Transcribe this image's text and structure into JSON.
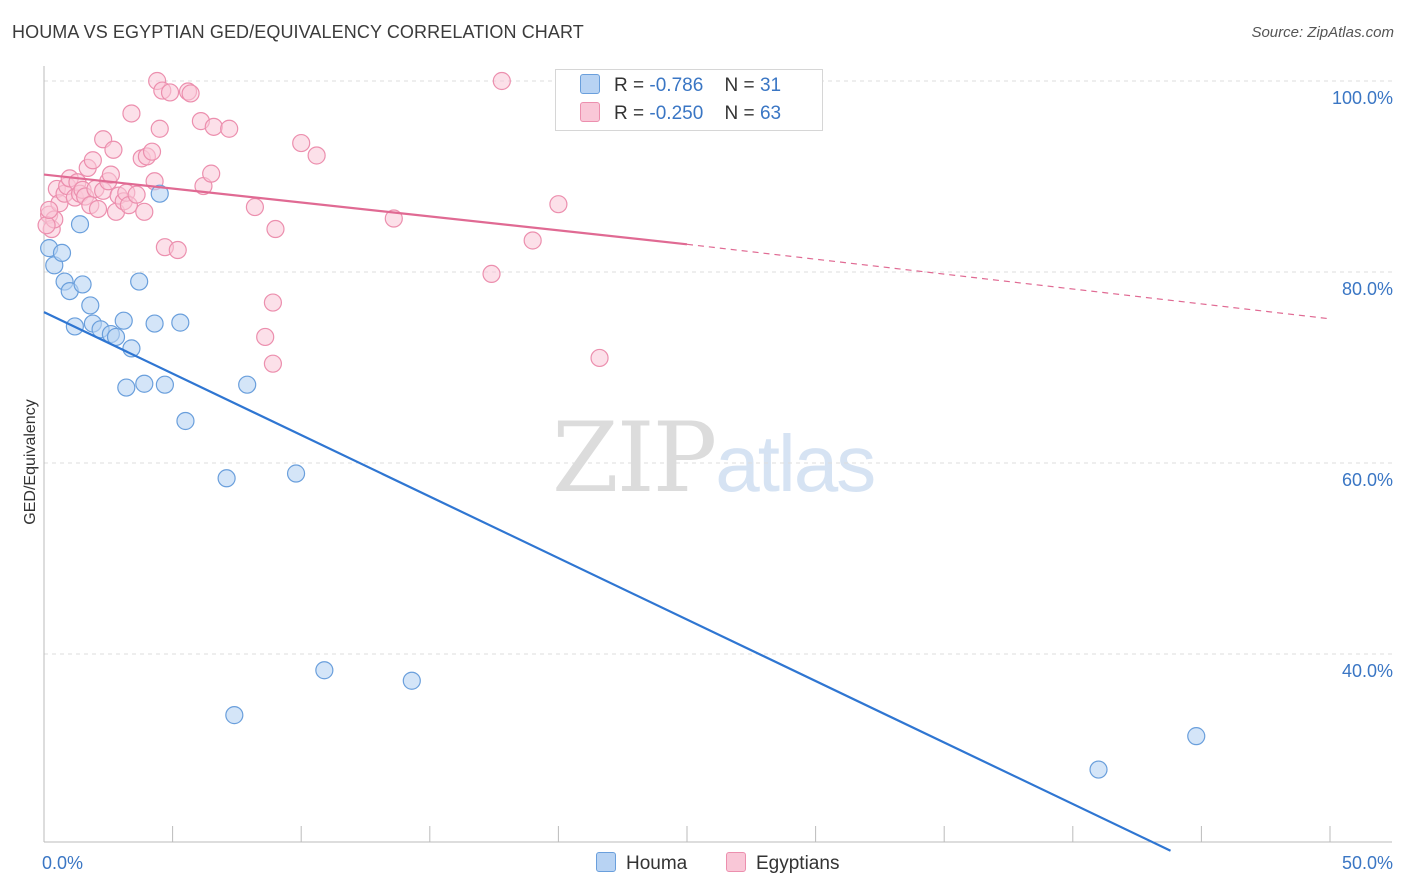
{
  "title": "HOUMA VS EGYPTIAN GED/EQUIVALENCY CORRELATION CHART",
  "source": "Source: ZipAtlas.com",
  "watermark": {
    "zip": "ZIP",
    "atlas": "atlas"
  },
  "legend": {
    "houma": {
      "r_label": "R =",
      "r_value": "-0.786",
      "n_label": "N =",
      "n_value": "31"
    },
    "egyptians": {
      "r_label": "R =",
      "r_value": "-0.250",
      "n_label": "N =",
      "n_value": "63"
    }
  },
  "colors": {
    "houma_fill": "#b8d3f3",
    "houma_stroke": "#6a9fdc",
    "houma_line": "#2f76d2",
    "egypt_fill": "#f9c7d7",
    "egypt_stroke": "#ec8fae",
    "egypt_line": "#e06a93",
    "axis_label": "#3a76c4",
    "grid": "#dddddd"
  },
  "chart_data": {
    "type": "scatter",
    "title": "HOUMA VS EGYPTIAN GED/EQUIVALENCY CORRELATION CHART",
    "xlabel": "",
    "ylabel": "GED/Equivalency",
    "xlim": [
      0,
      50
    ],
    "ylim": [
      20,
      102
    ],
    "x_tick_labels": [
      "0.0%",
      "50.0%"
    ],
    "y_ticks": [
      {
        "value": 100,
        "label": "100.0%"
      },
      {
        "value": 80,
        "label": "80.0%"
      },
      {
        "value": 60,
        "label": "60.0%"
      },
      {
        "value": 40,
        "label": "40.0%"
      }
    ],
    "grid": "horizontal dashed",
    "legend_position": "top-center",
    "series": [
      {
        "name": "Houma",
        "points": [
          [
            0.2,
            82.5
          ],
          [
            0.4,
            80.7
          ],
          [
            0.7,
            82.0
          ],
          [
            0.8,
            79.0
          ],
          [
            1.0,
            78.0
          ],
          [
            1.2,
            74.3
          ],
          [
            1.4,
            85.0
          ],
          [
            1.5,
            78.7
          ],
          [
            1.8,
            76.5
          ],
          [
            1.9,
            74.6
          ],
          [
            2.2,
            74.0
          ],
          [
            2.6,
            73.5
          ],
          [
            2.8,
            73.2
          ],
          [
            3.1,
            74.9
          ],
          [
            3.2,
            67.9
          ],
          [
            3.4,
            72.0
          ],
          [
            3.7,
            79.0
          ],
          [
            3.9,
            68.3
          ],
          [
            4.3,
            74.6
          ],
          [
            4.5,
            88.2
          ],
          [
            4.7,
            68.2
          ],
          [
            5.3,
            74.7
          ],
          [
            5.5,
            64.4
          ],
          [
            7.1,
            58.4
          ],
          [
            7.9,
            68.2
          ],
          [
            7.4,
            33.6
          ],
          [
            9.8,
            58.9
          ],
          [
            10.9,
            38.3
          ],
          [
            14.3,
            37.2
          ],
          [
            41.0,
            27.9
          ],
          [
            44.8,
            31.4
          ]
        ],
        "trend": {
          "x": [
            0,
            43.8
          ],
          "y": [
            75.8,
            19.4
          ]
        }
      },
      {
        "name": "Egyptians",
        "points": [
          [
            0.2,
            86.0
          ],
          [
            0.3,
            84.5
          ],
          [
            0.4,
            85.5
          ],
          [
            0.5,
            88.7
          ],
          [
            0.6,
            87.2
          ],
          [
            0.8,
            88.2
          ],
          [
            0.9,
            89.0
          ],
          [
            1.0,
            89.8
          ],
          [
            1.2,
            87.8
          ],
          [
            1.3,
            89.4
          ],
          [
            1.4,
            88.2
          ],
          [
            1.5,
            88.6
          ],
          [
            1.6,
            87.9
          ],
          [
            1.7,
            90.9
          ],
          [
            1.8,
            87.0
          ],
          [
            1.9,
            91.7
          ],
          [
            2.0,
            88.7
          ],
          [
            2.1,
            86.6
          ],
          [
            2.3,
            88.5
          ],
          [
            2.3,
            93.9
          ],
          [
            2.5,
            89.5
          ],
          [
            2.6,
            90.2
          ],
          [
            2.7,
            92.8
          ],
          [
            2.8,
            86.3
          ],
          [
            2.9,
            88.0
          ],
          [
            3.1,
            87.4
          ],
          [
            3.2,
            88.3
          ],
          [
            3.3,
            87.0
          ],
          [
            3.4,
            96.6
          ],
          [
            3.6,
            88.1
          ],
          [
            3.8,
            91.9
          ],
          [
            3.9,
            86.3
          ],
          [
            4.0,
            92.1
          ],
          [
            4.2,
            92.6
          ],
          [
            4.3,
            89.5
          ],
          [
            4.5,
            95.0
          ],
          [
            4.4,
            100.0
          ],
          [
            4.6,
            99.0
          ],
          [
            4.7,
            82.6
          ],
          [
            4.9,
            98.8
          ],
          [
            5.2,
            82.3
          ],
          [
            5.6,
            98.9
          ],
          [
            5.7,
            98.7
          ],
          [
            6.1,
            95.8
          ],
          [
            6.2,
            89.0
          ],
          [
            6.5,
            90.3
          ],
          [
            6.6,
            95.2
          ],
          [
            7.2,
            95.0
          ],
          [
            8.2,
            86.8
          ],
          [
            8.6,
            73.2
          ],
          [
            8.9,
            70.4
          ],
          [
            8.9,
            76.8
          ],
          [
            9.0,
            84.5
          ],
          [
            10.0,
            93.5
          ],
          [
            10.6,
            92.2
          ],
          [
            13.6,
            85.6
          ],
          [
            17.4,
            79.8
          ],
          [
            17.8,
            100.0
          ],
          [
            19.0,
            83.3
          ],
          [
            20.0,
            87.1
          ],
          [
            21.6,
            71.0
          ],
          [
            0.1,
            84.9
          ],
          [
            0.2,
            86.5
          ]
        ],
        "trend": {
          "x": [
            0,
            25
          ],
          "y": [
            90.2,
            82.9
          ]
        },
        "trend_extension": {
          "x": [
            25,
            50
          ],
          "y": [
            82.9,
            75.1
          ]
        }
      }
    ]
  },
  "bottom_legend": [
    {
      "name": "Houma"
    },
    {
      "name": "Egyptians"
    }
  ]
}
